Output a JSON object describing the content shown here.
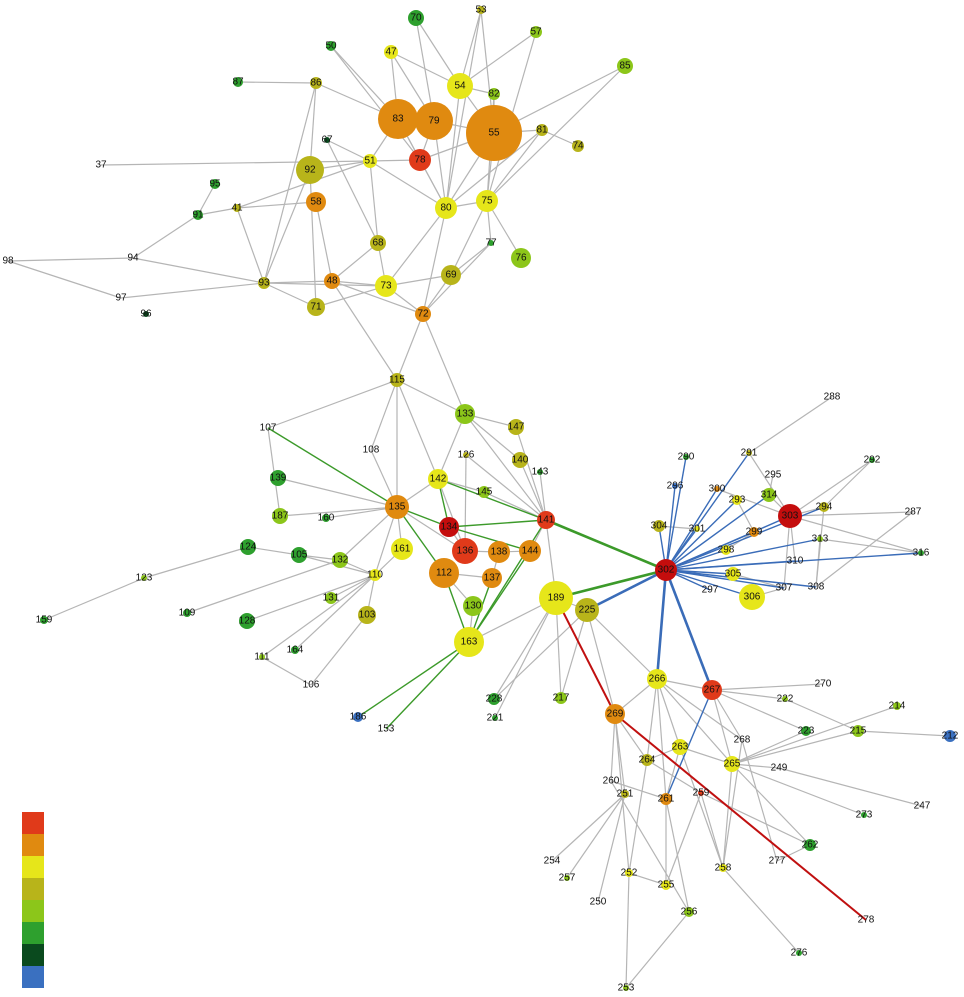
{
  "nodes": [
    {
      "label": "70"
    },
    {
      "label": "53"
    },
    {
      "label": "50"
    },
    {
      "label": "57"
    },
    {
      "label": "47"
    },
    {
      "label": "87"
    },
    {
      "label": "86"
    },
    {
      "label": "54"
    },
    {
      "label": "82"
    },
    {
      "label": "85"
    },
    {
      "label": "83"
    },
    {
      "label": "79"
    },
    {
      "label": "55"
    },
    {
      "label": "81"
    },
    {
      "label": "67"
    },
    {
      "label": "74"
    },
    {
      "label": "37"
    },
    {
      "label": "92"
    },
    {
      "label": "51"
    },
    {
      "label": "78"
    },
    {
      "label": "95"
    },
    {
      "label": "58"
    },
    {
      "label": "80"
    },
    {
      "label": "75"
    },
    {
      "label": "41"
    },
    {
      "label": "91"
    },
    {
      "label": "68"
    },
    {
      "label": "77"
    },
    {
      "label": "76"
    },
    {
      "label": "98"
    },
    {
      "label": "94"
    },
    {
      "label": "93"
    },
    {
      "label": "48"
    },
    {
      "label": "73"
    },
    {
      "label": "69"
    },
    {
      "label": "97"
    },
    {
      "label": "71"
    },
    {
      "label": "72"
    },
    {
      "label": "96"
    },
    {
      "label": "115"
    },
    {
      "label": "133"
    },
    {
      "label": "147"
    },
    {
      "label": "107"
    },
    {
      "label": "108"
    },
    {
      "label": "126"
    },
    {
      "label": "140"
    },
    {
      "label": "143"
    },
    {
      "label": "142"
    },
    {
      "label": "139"
    },
    {
      "label": "145"
    },
    {
      "label": "288"
    },
    {
      "label": "290"
    },
    {
      "label": "291"
    },
    {
      "label": "292"
    },
    {
      "label": "296"
    },
    {
      "label": "300"
    },
    {
      "label": "295"
    },
    {
      "label": "293"
    },
    {
      "label": "314"
    },
    {
      "label": "294"
    },
    {
      "label": "303"
    },
    {
      "label": "287"
    },
    {
      "label": "187"
    },
    {
      "label": "160"
    },
    {
      "label": "135"
    },
    {
      "label": "134"
    },
    {
      "label": "141"
    },
    {
      "label": "304"
    },
    {
      "label": "301"
    },
    {
      "label": "299"
    },
    {
      "label": "313"
    },
    {
      "label": "124"
    },
    {
      "label": "161"
    },
    {
      "label": "136"
    },
    {
      "label": "138"
    },
    {
      "label": "144"
    },
    {
      "label": "298"
    },
    {
      "label": "316"
    },
    {
      "label": "105"
    },
    {
      "label": "132"
    },
    {
      "label": "302"
    },
    {
      "label": "310"
    },
    {
      "label": "112"
    },
    {
      "label": "110"
    },
    {
      "label": "137"
    },
    {
      "label": "305"
    },
    {
      "label": "123"
    },
    {
      "label": "297"
    },
    {
      "label": "307"
    },
    {
      "label": "308"
    },
    {
      "label": "189"
    },
    {
      "label": "306"
    },
    {
      "label": "131"
    },
    {
      "label": "225"
    },
    {
      "label": "109"
    },
    {
      "label": "130"
    },
    {
      "label": "103"
    },
    {
      "label": "159"
    },
    {
      "label": "128"
    },
    {
      "label": "163"
    },
    {
      "label": "111"
    },
    {
      "label": "164"
    },
    {
      "label": "106"
    },
    {
      "label": "266"
    },
    {
      "label": "267"
    },
    {
      "label": "270"
    },
    {
      "label": "222"
    },
    {
      "label": "214"
    },
    {
      "label": "228"
    },
    {
      "label": "217"
    },
    {
      "label": "269"
    },
    {
      "label": "221"
    },
    {
      "label": "186"
    },
    {
      "label": "153"
    },
    {
      "label": "223"
    },
    {
      "label": "215"
    },
    {
      "label": "212"
    },
    {
      "label": "268"
    },
    {
      "label": "263"
    },
    {
      "label": "249"
    },
    {
      "label": "264"
    },
    {
      "label": "265"
    },
    {
      "label": "260"
    },
    {
      "label": "251"
    },
    {
      "label": "261"
    },
    {
      "label": "259"
    },
    {
      "label": "247"
    },
    {
      "label": "273"
    },
    {
      "label": "262"
    },
    {
      "label": "254"
    },
    {
      "label": "277"
    },
    {
      "label": "257"
    },
    {
      "label": "252"
    },
    {
      "label": "258"
    },
    {
      "label": "255"
    },
    {
      "label": "250"
    },
    {
      "label": "256"
    },
    {
      "label": "278"
    },
    {
      "label": "276"
    },
    {
      "label": "253"
    }
  ]
}
